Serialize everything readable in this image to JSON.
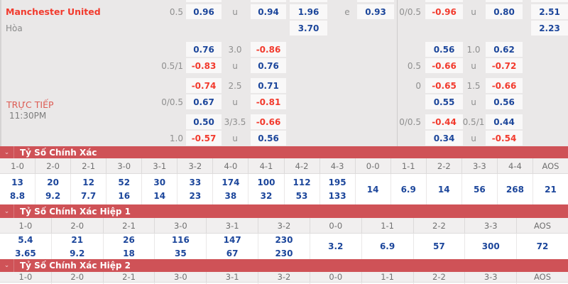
{
  "colors": {
    "bg": "#eae8e8",
    "cellbg": "#f9f8f8",
    "blue": "#1c469b",
    "red": "#f23a2d",
    "graylab": "#8f8f8f",
    "teamred": "#f23a2d",
    "livered": "#dd5b53",
    "bar": "#cf5257",
    "headbg": "#f1efef",
    "headtx": "#707070"
  },
  "odds_panel": {
    "team": "Manchester United",
    "draw": "Hòa",
    "live": "TRỰC TIẾP",
    "time": "11:30PM",
    "rows": [
      [
        [
          "lh",
          "0.5",
          "gray"
        ],
        [
          "A",
          "0.96",
          "blue"
        ],
        [
          "lm",
          "u",
          "gray"
        ],
        [
          "B",
          "0.94",
          "blue"
        ],
        [
          "C",
          "1.96",
          "blue"
        ],
        [
          "e",
          "e",
          "gray"
        ],
        [
          "D",
          "0.93",
          "blue"
        ],
        [
          "rh",
          "0/0.5",
          "gray"
        ],
        [
          "E",
          "-0.96",
          "red"
        ],
        [
          "rm",
          "u",
          "gray"
        ],
        [
          "F",
          "0.80",
          "blue"
        ],
        [
          "G",
          "2.51",
          "blue"
        ]
      ],
      [
        [
          "C",
          "3.70",
          "blue"
        ],
        [
          "G",
          "2.23",
          "blue"
        ]
      ],
      [
        [
          "A",
          "0.76",
          "blue"
        ],
        [
          "lm",
          "3.0",
          "gray"
        ],
        [
          "B",
          "-0.86",
          "red"
        ],
        [
          "E",
          "0.56",
          "blue"
        ],
        [
          "rm",
          "1.0",
          "gray"
        ],
        [
          "F",
          "0.62",
          "blue"
        ]
      ],
      [
        [
          "lh",
          "0.5/1",
          "gray"
        ],
        [
          "A",
          "-0.83",
          "red"
        ],
        [
          "lm",
          "u",
          "gray"
        ],
        [
          "B",
          "0.76",
          "blue"
        ],
        [
          "rh",
          "0.5",
          "gray"
        ],
        [
          "E",
          "-0.66",
          "red"
        ],
        [
          "rm",
          "u",
          "gray"
        ],
        [
          "F",
          "-0.72",
          "red"
        ]
      ],
      [
        [
          "A",
          "-0.74",
          "red"
        ],
        [
          "lm",
          "2.5",
          "gray"
        ],
        [
          "B",
          "0.71",
          "blue"
        ],
        [
          "rh",
          "0",
          "gray"
        ],
        [
          "E",
          "-0.65",
          "red"
        ],
        [
          "rm",
          "1.5",
          "gray"
        ],
        [
          "F",
          "-0.66",
          "red"
        ]
      ],
      [
        [
          "lh",
          "0/0.5",
          "gray"
        ],
        [
          "A",
          "0.67",
          "blue"
        ],
        [
          "lm",
          "u",
          "gray"
        ],
        [
          "B",
          "-0.81",
          "red"
        ],
        [
          "E",
          "0.55",
          "blue"
        ],
        [
          "rm",
          "u",
          "gray"
        ],
        [
          "F",
          "0.56",
          "blue"
        ]
      ],
      [
        [
          "A",
          "0.50",
          "blue"
        ],
        [
          "lm",
          "3/3.5",
          "gray"
        ],
        [
          "B",
          "-0.66",
          "red"
        ],
        [
          "rh",
          "0/0.5",
          "gray"
        ],
        [
          "E",
          "-0.44",
          "red"
        ],
        [
          "rm",
          "0.5/1",
          "gray"
        ],
        [
          "F",
          "0.44",
          "blue"
        ]
      ],
      [
        [
          "lh",
          "1.0",
          "gray"
        ],
        [
          "A",
          "-0.57",
          "red"
        ],
        [
          "lm",
          "u",
          "gray"
        ],
        [
          "B",
          "0.56",
          "blue"
        ],
        [
          "E",
          "0.34",
          "blue"
        ],
        [
          "rm",
          "u",
          "gray"
        ],
        [
          "F",
          "-0.54",
          "red"
        ]
      ]
    ]
  },
  "score_sections": [
    {
      "title": "Tỷ Số Chính Xác",
      "chevron": "⌄",
      "columns": [
        "1-0",
        "2-0",
        "2-1",
        "3-0",
        "3-1",
        "3-2",
        "4-0",
        "4-1",
        "4-2",
        "4-3",
        "0-0",
        "1-1",
        "2-2",
        "3-3",
        "4-4",
        "AOS"
      ],
      "cells": [
        [
          "13",
          "8.8"
        ],
        [
          "20",
          "9.2"
        ],
        [
          "12",
          "7.7"
        ],
        [
          "52",
          "16"
        ],
        [
          "30",
          "14"
        ],
        [
          "33",
          "23"
        ],
        [
          "174",
          "38"
        ],
        [
          "100",
          "32"
        ],
        [
          "112",
          "53"
        ],
        [
          "195",
          "133"
        ],
        [
          "14"
        ],
        [
          "6.9"
        ],
        [
          "14"
        ],
        [
          "56"
        ],
        [
          "268"
        ],
        [
          "21"
        ]
      ]
    },
    {
      "title": "Tỷ Số Chính Xác Hiệp 1",
      "chevron": "⌄",
      "columns": [
        "1-0",
        "2-0",
        "2-1",
        "3-0",
        "3-1",
        "3-2",
        "0-0",
        "1-1",
        "2-2",
        "3-3",
        "AOS"
      ],
      "cells": [
        [
          "5.4",
          "3.65"
        ],
        [
          "21",
          "9.2"
        ],
        [
          "26",
          "18"
        ],
        [
          "116",
          "35"
        ],
        [
          "147",
          "67"
        ],
        [
          "230",
          "230"
        ],
        [
          "3.2"
        ],
        [
          "6.9"
        ],
        [
          "57"
        ],
        [
          "300"
        ],
        [
          "72"
        ]
      ]
    },
    {
      "title": "Tỷ Số Chính Xác Hiệp 2",
      "chevron": "⌄",
      "columns": [
        "1-0",
        "2-0",
        "2-1",
        "3-0",
        "3-1",
        "3-2",
        "0-0",
        "1-1",
        "2-2",
        "3-3",
        "AOS"
      ],
      "cells": []
    }
  ]
}
